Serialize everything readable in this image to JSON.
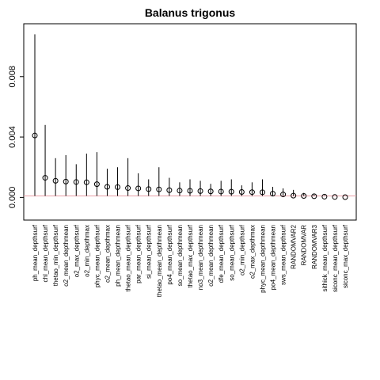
{
  "chart_data": {
    "type": "scatter",
    "title": "Balanus trigonus",
    "xlabel": "",
    "ylabel": "",
    "ylim": [
      -0.0015,
      0.0115
    ],
    "yticks": [
      0.0,
      0.004,
      0.008
    ],
    "ytick_labels": [
      "0.000",
      "0.004",
      "0.008"
    ],
    "grid": false,
    "reference_line": {
      "y": 0.0001,
      "color": "#e8a0a8"
    },
    "point_color": "#000000",
    "categories": [
      "ph_mean_depthsurf",
      "chl_mean_depthsurf",
      "thetao_min_depthsurf",
      "o2_mean_depthmean",
      "o2_max_depthsurf",
      "o2_min_depthmax",
      "phyc_mean_depthsurf",
      "o2_mean_depthmax",
      "ph_mean_depthmean",
      "thetao_mean_depthsurf",
      "par_mean_depthsurf",
      "si_mean_depthsurf",
      "thetao_mean_depthmean",
      "po4_mean_depthsurf",
      "so_mean_depthmean",
      "thetao_max_depthsurf",
      "no3_mean_depthmean",
      "o2_mean_depthmean",
      "dfe_mean_depthsurf",
      "so_mean_depthsurf",
      "o2_min_depthsurf",
      "o2_max_depthmax",
      "phyc_mean_depthmean",
      "po4_mean_depthmean",
      "sws_mean_depthsurf",
      "RANDOMVAR2",
      "RANDOMVAR",
      "RANDOMVAR3",
      "sithick_mean_depthsurf",
      "siconc_mean_depthsurf",
      "siconc_max_depthsurf"
    ],
    "series": [
      {
        "values": [
          0.0041,
          0.0013,
          0.0011,
          0.00105,
          0.00102,
          0.001,
          0.00088,
          0.0007,
          0.00068,
          0.00062,
          0.0006,
          0.00055,
          0.00053,
          0.00048,
          0.00045,
          0.00044,
          0.00042,
          0.0004,
          0.00039,
          0.00038,
          0.00036,
          0.00035,
          0.00034,
          0.00025,
          0.0002,
          0.00012,
          0.0001,
          8e-05,
          5e-05,
          3e-05,
          2e-05
        ],
        "upper": [
          0.0108,
          0.0048,
          0.0026,
          0.0028,
          0.0022,
          0.0029,
          0.003,
          0.0019,
          0.002,
          0.0026,
          0.0016,
          0.0012,
          0.002,
          0.0013,
          0.001,
          0.0012,
          0.0011,
          0.0009,
          0.0011,
          0.0012,
          0.0008,
          0.001,
          0.0012,
          0.0007,
          0.0006,
          0.0005,
          0.0003,
          0.0002,
          0.00015,
          0.0001,
          0.0001
        ],
        "lower": [
          0.0001,
          0.0001,
          0.0001,
          0.0001,
          0.0001,
          0.0001,
          0.0001,
          0.0001,
          0.0001,
          0.0001,
          0.0001,
          0.0001,
          0.0001,
          0.0001,
          0.0001,
          0.0001,
          0.0001,
          0.0001,
          0.0001,
          0.0001,
          0.0001,
          0.0001,
          0.0001,
          0.0001,
          0.0001,
          0.0001,
          0.0001,
          0.0001,
          0.0001,
          0.0001,
          0.0001
        ]
      }
    ]
  }
}
